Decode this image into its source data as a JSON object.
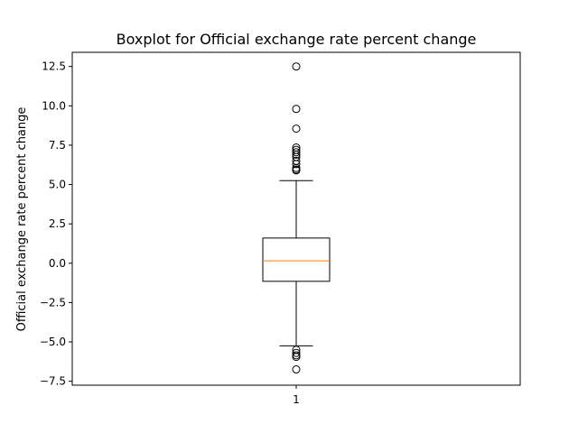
{
  "chart_data": {
    "type": "boxplot",
    "title": "Boxplot for Official exchange rate percent change",
    "xlabel": "",
    "ylabel": "Official exchange rate percent change",
    "categories": [
      "1"
    ],
    "ylim": [
      -7.75,
      13.4
    ],
    "yticks": [
      -7.5,
      -5.0,
      -2.5,
      0.0,
      2.5,
      5.0,
      7.5,
      10.0,
      12.5
    ],
    "ytick_labels": [
      "−7.5",
      "−5.0",
      "−2.5",
      "0.0",
      "2.5",
      "5.0",
      "7.5",
      "10.0",
      "12.5"
    ],
    "box": {
      "q1": -1.15,
      "median": 0.15,
      "q3": 1.6,
      "whisker_low": -5.25,
      "whisker_high": 5.25
    },
    "outliers": [
      12.5,
      9.8,
      8.55,
      7.35,
      7.2,
      7.05,
      6.9,
      6.75,
      6.5,
      6.3,
      6.05,
      5.95,
      5.9,
      -5.5,
      -5.7,
      -5.85,
      -5.95,
      -6.75
    ],
    "grid": false,
    "colors": {
      "box": "#000000",
      "median": "#ff7f0e",
      "flier": "#000000"
    }
  }
}
